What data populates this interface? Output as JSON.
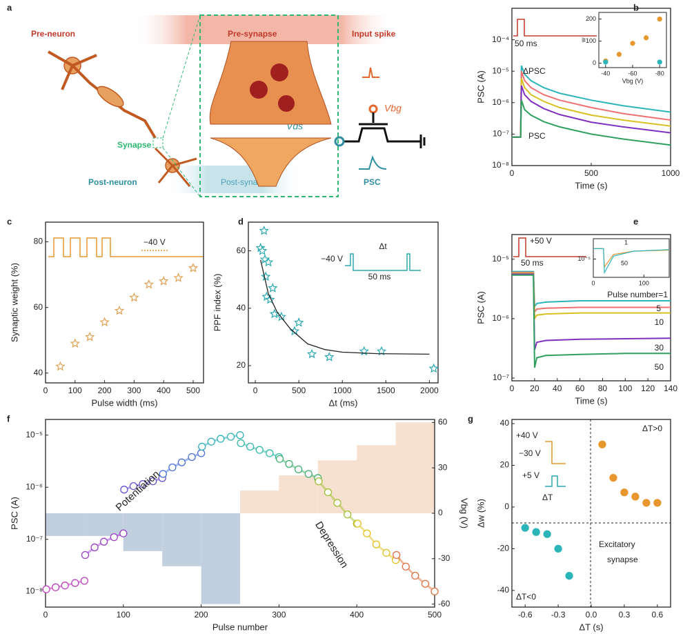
{
  "schematic": {
    "panel": "a",
    "pre_neuron": "Pre-neuron",
    "pre_synapse": "Pre-synapse",
    "input_spike": "Input spike",
    "synapse": "Synapse",
    "post_neuron": "Post-neuron",
    "post_synapse": "Post-synapse",
    "vbg": "Vbg",
    "vds": "Vds",
    "psc": "PSC"
  },
  "chart_data": [
    {
      "type": "line",
      "panel": "b",
      "x_label": "Time (s)",
      "y_label": "PSC (A)",
      "log_y": true,
      "xlim": [
        0,
        1000
      ],
      "xticks": [
        0,
        500,
        1000
      ],
      "ylim": [
        1e-08,
        0.001
      ],
      "yticks": [
        {
          "value": 1e-08,
          "label": "10⁻⁸"
        },
        {
          "value": 1e-07,
          "label": "10⁻⁷"
        },
        {
          "value": 1e-06,
          "label": "10⁻⁶"
        },
        {
          "value": 1e-05,
          "label": "10⁻⁵"
        },
        {
          "value": 0.0001,
          "label": "10⁻⁴"
        }
      ],
      "x": [
        0,
        55,
        60,
        80,
        120,
        200,
        300,
        500,
        700,
        1000
      ],
      "series": [
        {
          "color": "#2bb5b8",
          "values": [
            8e-08,
            8e-08,
            1.5e-05,
            8e-06,
            5e-06,
            3e-06,
            2e-06,
            1.2e-06,
            8e-07,
            5e-07
          ]
        },
        {
          "color": "#f07070",
          "values": [
            8e-08,
            8e-08,
            1e-05,
            5e-06,
            3e-06,
            1.8e-06,
            1.2e-06,
            7e-07,
            4.5e-07,
            2.8e-07
          ]
        },
        {
          "color": "#d8c020",
          "values": [
            8e-08,
            8e-08,
            6e-06,
            3e-06,
            1.8e-06,
            1.1e-06,
            7e-07,
            4e-07,
            2.8e-07,
            1.8e-07
          ]
        },
        {
          "color": "#8030c0",
          "values": [
            8e-08,
            8e-08,
            3.5e-06,
            1.8e-06,
            1.1e-06,
            6.5e-07,
            4.2e-07,
            2.4e-07,
            1.7e-07,
            1.1e-07
          ]
        },
        {
          "color": "#30a060",
          "values": [
            8e-08,
            8e-08,
            1.2e-06,
            6e-07,
            4e-07,
            2.5e-07,
            1.7e-07,
            1e-07,
            7e-08,
            4.5e-08
          ]
        }
      ],
      "annotations": [
        "50 ms",
        "ΔPSC",
        "PSC"
      ],
      "inset": {
        "type": "scatter",
        "x_label": "Vbg (V)",
        "y_label": "w",
        "xlim": [
          -35,
          -85
        ],
        "xticks": [
          -40,
          -60,
          -80
        ],
        "ylim": [
          -20,
          230
        ],
        "yticks": [
          0,
          100,
          200
        ],
        "series": [
          {
            "color": "#e8962e",
            "marker": "circle",
            "x": [
              -40,
              -50,
              -60,
              -70,
              -80
            ],
            "values": [
              10,
              40,
              90,
              115,
              200
            ]
          },
          {
            "color": "#2bb5b8",
            "marker": "circle",
            "x": [
              -40,
              -80
            ],
            "values": [
              5,
              5
            ]
          }
        ]
      }
    },
    {
      "type": "scatter",
      "panel": "c",
      "x_label": "Pulse width (ms)",
      "y_label": "Synaptic weight (%)",
      "xlim": [
        0,
        535
      ],
      "xticks": [
        0,
        100,
        200,
        300,
        400,
        500
      ],
      "ylim": [
        37,
        86
      ],
      "yticks": [
        40,
        60,
        80
      ],
      "series": [
        {
          "color": "#e0a050",
          "marker": "star",
          "x": [
            50,
            100,
            150,
            200,
            250,
            300,
            350,
            400,
            450,
            500
          ],
          "values": [
            42,
            49,
            51,
            55.5,
            59,
            63,
            67,
            68,
            69,
            72
          ]
        }
      ],
      "annotations": [
        "−40 V"
      ]
    },
    {
      "type": "scatter",
      "panel": "d",
      "x_label": "Δt (ms)",
      "y_label": "PPF index (%)",
      "xlim": [
        -80,
        2100
      ],
      "xticks": [
        0,
        500,
        1000,
        1500,
        2000
      ],
      "ylim": [
        14,
        70
      ],
      "yticks": [
        20,
        40,
        60
      ],
      "series": [
        {
          "color": "#2aa8b0",
          "marker": "star",
          "x": [
            60,
            80,
            100,
            110,
            120,
            130,
            150,
            170,
            200,
            220,
            300,
            450,
            500,
            650,
            850,
            1250,
            1450,
            2050
          ],
          "values": [
            61,
            60,
            67,
            57,
            51,
            44,
            56,
            43,
            47,
            38,
            37,
            32,
            35,
            24,
            23,
            25,
            25,
            19
          ]
        }
      ],
      "fit": {
        "color": "#222222",
        "x": [
          60,
          150,
          250,
          400,
          600,
          800,
          1000,
          1400,
          2000
        ],
        "values": [
          56.8,
          45.1,
          38.7,
          32.9,
          27.6,
          25.6,
          24.7,
          24.2,
          24
        ]
      },
      "annotations": [
        "−40 V",
        "Δt",
        "50 ms"
      ]
    },
    {
      "type": "line",
      "panel": "e",
      "x_label": "Time (s)",
      "y_label": "PSC (A)",
      "log_y": true,
      "xlim": [
        0,
        140
      ],
      "xticks": [
        0,
        20,
        40,
        60,
        80,
        100,
        120,
        140
      ],
      "ylim": [
        9e-08,
        2.6e-05
      ],
      "yticks": [
        {
          "value": 1e-07,
          "label": "10⁻⁷"
        },
        {
          "value": 1e-06,
          "label": "10⁻⁶"
        },
        {
          "value": 1e-05,
          "label": "10⁻⁵"
        }
      ],
      "x": [
        0,
        19,
        20,
        22,
        30,
        60,
        100,
        140
      ],
      "series": [
        {
          "name": "Pulse number=1",
          "color": "#2bb5b8",
          "values": [
            6.2e-06,
            6.2e-06,
            1.6e-06,
            1.8e-06,
            1.9e-06,
            2e-06,
            2e-06,
            2e-06
          ]
        },
        {
          "name": "5",
          "color": "#f07070",
          "values": [
            6e-06,
            6e-06,
            1.3e-06,
            1.45e-06,
            1.5e-06,
            1.55e-06,
            1.55e-06,
            1.55e-06
          ]
        },
        {
          "name": "10",
          "color": "#d8c020",
          "values": [
            5.8e-06,
            5.8e-06,
            1e-06,
            1.15e-06,
            1.2e-06,
            1.25e-06,
            1.25e-06,
            1.25e-06
          ]
        },
        {
          "name": "30",
          "color": "#8030c0",
          "values": [
            5.6e-06,
            5.6e-06,
            3e-07,
            4e-07,
            4.3e-07,
            4.5e-07,
            4.6e-07,
            4.7e-07
          ]
        },
        {
          "name": "50",
          "color": "#30a060",
          "values": [
            5.4e-06,
            5.4e-06,
            1.5e-07,
            2.2e-07,
            2.4e-07,
            2.5e-07,
            2.6e-07,
            2.6e-07
          ]
        }
      ],
      "annotations": [
        "+50 V",
        "50 ms"
      ],
      "inset": {
        "type": "line",
        "log_y": true,
        "xlim": [
          0,
          150
        ],
        "xticks": [
          0,
          100
        ],
        "ylim": [
          2e-06,
          6e-05
        ],
        "yticks": [
          {
            "value": 1e-05,
            "label": "10⁻⁵"
          }
        ],
        "x": [
          0,
          20,
          22,
          40,
          80,
          150
        ],
        "series": [
          {
            "name": "1",
            "color": "#e8962e",
            "values": [
              2.5e-05,
              2.5e-05,
              5e-06,
              1.5e-05,
              2e-05,
              2.2e-05
            ]
          },
          {
            "name": "50",
            "color": "#2bb5b8",
            "values": [
              2.5e-05,
              2.5e-05,
              3e-06,
              1.3e-05,
              2e-05,
              2.3e-05
            ]
          }
        ]
      }
    },
    {
      "type": "line",
      "panel": "f",
      "x_label": "Pulse number",
      "y_label": "PSC (A)",
      "y2_label": "Vbg (V)",
      "log_y": true,
      "xlim": [
        0,
        500
      ],
      "xticks": [
        0,
        100,
        200,
        300,
        400,
        500
      ],
      "ylim": [
        5e-09,
        2e-05
      ],
      "yticks": [
        {
          "value": 1e-08,
          "label": "10⁻⁸"
        },
        {
          "value": 1e-07,
          "label": "10⁻⁷"
        },
        {
          "value": 1e-06,
          "label": "10⁻⁶"
        },
        {
          "value": 1e-05,
          "label": "10⁻⁵"
        }
      ],
      "y2lim": [
        -62,
        62
      ],
      "y2ticks": [
        -60,
        -30,
        0,
        30,
        60
      ],
      "bars": {
        "color_negative": "#c2cfdf",
        "color_positive": "#f6e0cf",
        "bins": [
          0,
          50,
          100,
          150,
          200,
          250,
          300,
          350,
          400,
          450,
          500
        ],
        "values": [
          -15,
          -15,
          -25,
          -35,
          -60,
          15,
          25,
          35,
          45,
          60
        ]
      },
      "series": [
        {
          "color": "#c040c0",
          "marker": "circle",
          "x": [
            1,
            13,
            25,
            38,
            50
          ],
          "values": [
            1.1e-08,
            1.2e-08,
            1.3e-08,
            1.45e-08,
            1.6e-08
          ]
        },
        {
          "color": "#9a3ec8",
          "marker": "circle",
          "x": [
            51,
            63,
            75,
            88,
            100
          ],
          "values": [
            5e-08,
            7e-08,
            9e-08,
            1.1e-07,
            1.3e-07
          ]
        },
        {
          "color": "#6a50d0",
          "marker": "circle",
          "x": [
            101,
            113,
            125,
            138,
            150
          ],
          "values": [
            9e-07,
            1.05e-06,
            1.15e-06,
            1.3e-06,
            1.5e-06
          ]
        },
        {
          "color": "#4a70d8",
          "marker": "circle",
          "x": [
            151,
            163,
            175,
            188,
            200
          ],
          "values": [
            1.8e-06,
            2.4e-06,
            3e-06,
            3.8e-06,
            4.5e-06
          ]
        },
        {
          "color": "#30b0b8",
          "marker": "circle",
          "x": [
            201,
            213,
            225,
            238,
            250
          ],
          "values": [
            6e-06,
            7.5e-06,
            8.5e-06,
            9.3e-06,
            1e-05
          ]
        },
        {
          "color": "#30b8a8",
          "marker": "circle",
          "x": [
            251,
            263,
            275,
            288,
            300
          ],
          "values": [
            7e-06,
            6e-06,
            5.2e-06,
            4.5e-06,
            3.8e-06
          ]
        },
        {
          "color": "#40b070",
          "marker": "circle",
          "x": [
            301,
            313,
            325,
            338,
            350
          ],
          "values": [
            3.5e-06,
            2.8e-06,
            2.2e-06,
            1.8e-06,
            1.5e-06
          ]
        },
        {
          "color": "#a0c030",
          "marker": "circle",
          "x": [
            351,
            363,
            375,
            388,
            400
          ],
          "values": [
            1.3e-06,
            8e-07,
            5e-07,
            3e-07,
            2e-07
          ]
        },
        {
          "color": "#e0c020",
          "marker": "circle",
          "x": [
            401,
            413,
            425,
            438,
            450
          ],
          "values": [
            2e-07,
            1.3e-07,
            8e-08,
            5.5e-08,
            4e-08
          ]
        },
        {
          "color": "#e07040",
          "marker": "circle",
          "x": [
            451,
            463,
            475,
            488,
            500
          ],
          "values": [
            5e-08,
            3e-08,
            2e-08,
            1.4e-08,
            1e-08
          ]
        }
      ],
      "annotations": [
        "Potentiation",
        "Depression"
      ]
    },
    {
      "type": "scatter",
      "panel": "g",
      "x_label": "ΔT (s)",
      "y_label": "Δw (%)",
      "xlim": [
        -0.72,
        0.72
      ],
      "xticks": [
        -0.6,
        -0.3,
        {
          "value": 0,
          "label": "0.0"
        },
        0.3,
        0.6
      ],
      "ylim": [
        -48,
        42
      ],
      "yticks": [
        -40,
        -20,
        0,
        20,
        40
      ],
      "series": [
        {
          "color": "#e8962e",
          "marker": "circle",
          "x": [
            0.1,
            0.2,
            0.3,
            0.4,
            0.5,
            0.6
          ],
          "values": [
            30,
            14,
            7,
            5,
            2,
            2
          ]
        },
        {
          "color": "#2bb5b8",
          "marker": "circle",
          "x": [
            -0.6,
            -0.5,
            -0.4,
            -0.3,
            -0.2
          ],
          "values": [
            -10,
            -12,
            -13,
            -20,
            -33
          ]
        }
      ],
      "annotations": [
        "ΔT>0",
        "ΔT<0",
        "Excitatory",
        "synapse",
        "+40 V",
        "−30 V",
        "+5 V",
        "ΔT"
      ]
    }
  ]
}
